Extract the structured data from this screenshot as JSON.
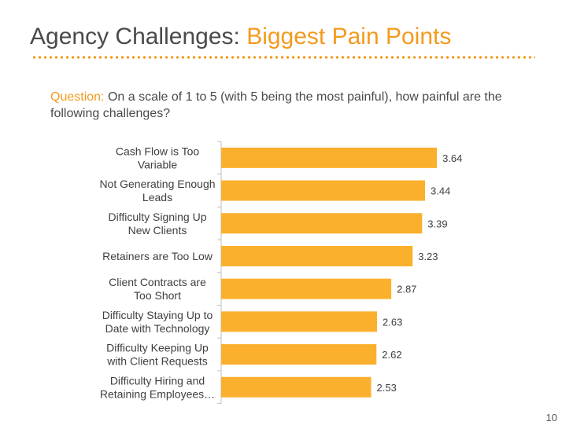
{
  "slide": {
    "title_main": "Agency Challenges:",
    "title_accent": "Biggest Pain Points",
    "question_label": "Question:",
    "question_text": "On a scale of 1 to 5 (with 5 being the most painful), how painful are the following challenges?",
    "page_number": "10"
  },
  "colors": {
    "bar": "#fbb02d",
    "accent": "#f39a1e",
    "text": "#4a4a4a",
    "axis": "#bfbfbf"
  },
  "chart_data": {
    "type": "bar",
    "orientation": "horizontal",
    "title": "",
    "xlabel": "",
    "ylabel": "",
    "xlim": [
      0,
      4
    ],
    "grid": false,
    "categories": [
      [
        "Cash Flow is Too",
        "Variable"
      ],
      [
        "Not Generating Enough",
        "Leads"
      ],
      [
        "Difficulty Signing Up",
        "New Clients"
      ],
      [
        "Retainers are Too Low"
      ],
      [
        "Client Contracts are",
        "Too Short"
      ],
      [
        "Difficulty Staying Up to",
        "Date with Technology"
      ],
      [
        "Difficulty Keeping Up",
        "with Client Requests"
      ],
      [
        "Difficulty Hiring and",
        "Retaining Employees…"
      ]
    ],
    "values": [
      3.64,
      3.44,
      3.39,
      3.23,
      2.87,
      2.63,
      2.62,
      2.53
    ],
    "value_labels": [
      "3.64",
      "3.44",
      "3.39",
      "3.23",
      "2.87",
      "2.63",
      "2.62",
      "2.53"
    ]
  }
}
